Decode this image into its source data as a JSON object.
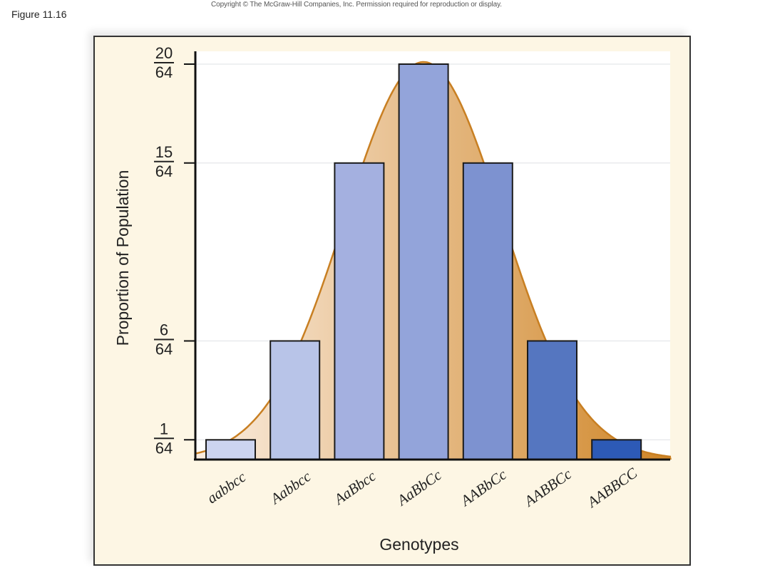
{
  "figure_label": "Figure 11.16",
  "copyright": "Copyright © The McGraw-Hill Companies, Inc. Permission required for reproduction or display.",
  "chart_data": {
    "type": "bar",
    "title": "",
    "xlabel": "Genotypes",
    "ylabel": "Proportion of Population",
    "categories": [
      "aabbcc",
      "Aabbcc",
      "AaBbcc",
      "AaBbCc",
      "AABbCc",
      "AABBCc",
      "AABBCC"
    ],
    "values": [
      1,
      6,
      15,
      20,
      15,
      6,
      1
    ],
    "value_denominator": 64,
    "ylim": [
      0,
      20
    ],
    "yticks": [
      {
        "value": 1,
        "numerator": "1",
        "denominator": "64"
      },
      {
        "value": 6,
        "numerator": "6",
        "denominator": "64"
      },
      {
        "value": 15,
        "numerator": "15",
        "denominator": "64"
      },
      {
        "value": 20,
        "numerator": "20",
        "denominator": "64"
      }
    ],
    "grid": true,
    "bar_colors": [
      "#ccd4f0",
      "#b8c4e8",
      "#a4b0e0",
      "#93a4da",
      "#7d92d0",
      "#5576c0",
      "#2d5ab6"
    ],
    "curve_color": "#c87f22",
    "curve_fill_light": "#fbeee2",
    "curve_fill_dark": "#cf8526",
    "overlay": "normal distribution curve"
  }
}
